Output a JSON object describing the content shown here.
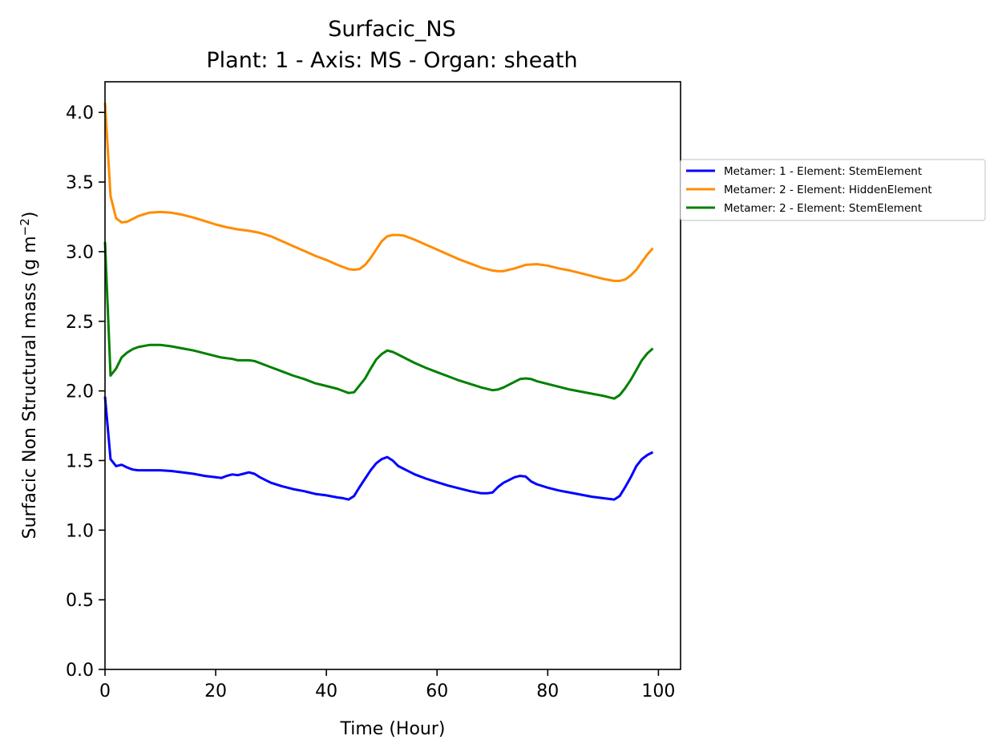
{
  "chart_data": {
    "type": "line",
    "title": "Surfacic_NS",
    "subtitle": "Plant: 1 - Axis: MS - Organ: sheath",
    "xlabel": "Time (Hour)",
    "ylabel_main": "Surfacic Non Structural mass (g m",
    "ylabel_sup": "−2",
    "ylabel_end": ")",
    "xlim": [
      0,
      104
    ],
    "ylim": [
      0,
      4.22
    ],
    "xticks": [
      0,
      20,
      40,
      60,
      80,
      100
    ],
    "yticks": [
      0.0,
      0.5,
      1.0,
      1.5,
      2.0,
      2.5,
      3.0,
      3.5,
      4.0
    ],
    "ytick_labels": [
      "0.0",
      "0.5",
      "1.0",
      "1.5",
      "2.0",
      "2.5",
      "3.0",
      "3.5",
      "4.0"
    ],
    "grid": false,
    "legend_position": "outside-right",
    "series": [
      {
        "name": "Metamer: 1 - Element: StemElement",
        "color": "#0000ff",
        "x": [
          0,
          1,
          2,
          3,
          4,
          5,
          6,
          8,
          10,
          12,
          14,
          16,
          18,
          20,
          21,
          22,
          23,
          24,
          25,
          26,
          27,
          28,
          29,
          30,
          32,
          34,
          36,
          38,
          40,
          42,
          43,
          44,
          45,
          46,
          47,
          48,
          49,
          50,
          51,
          52,
          53,
          54,
          56,
          58,
          60,
          62,
          64,
          66,
          68,
          69,
          70,
          71,
          72,
          73,
          74,
          75,
          76,
          77,
          78,
          80,
          82,
          84,
          86,
          88,
          90,
          91,
          92,
          93,
          94,
          95,
          96,
          97,
          98,
          99
        ],
        "y": [
          1.96,
          1.51,
          1.46,
          1.47,
          1.45,
          1.435,
          1.43,
          1.43,
          1.43,
          1.425,
          1.415,
          1.405,
          1.39,
          1.38,
          1.375,
          1.39,
          1.4,
          1.395,
          1.405,
          1.415,
          1.405,
          1.38,
          1.36,
          1.34,
          1.315,
          1.295,
          1.28,
          1.26,
          1.25,
          1.235,
          1.23,
          1.22,
          1.245,
          1.31,
          1.37,
          1.43,
          1.48,
          1.51,
          1.525,
          1.5,
          1.46,
          1.44,
          1.4,
          1.37,
          1.345,
          1.32,
          1.3,
          1.28,
          1.265,
          1.265,
          1.27,
          1.31,
          1.34,
          1.36,
          1.38,
          1.39,
          1.385,
          1.35,
          1.33,
          1.305,
          1.285,
          1.27,
          1.255,
          1.24,
          1.23,
          1.225,
          1.22,
          1.245,
          1.31,
          1.38,
          1.46,
          1.51,
          1.54,
          1.56
        ]
      },
      {
        "name": "Metamer: 2 - Element: HiddenElement",
        "color": "#ff8c00",
        "x": [
          0,
          1,
          2,
          3,
          4,
          5,
          6,
          8,
          10,
          12,
          14,
          16,
          18,
          20,
          22,
          24,
          26,
          28,
          30,
          32,
          34,
          36,
          38,
          40,
          42,
          44,
          45,
          46,
          47,
          48,
          49,
          50,
          51,
          52,
          53,
          54,
          55,
          56,
          58,
          60,
          62,
          64,
          66,
          68,
          70,
          71,
          72,
          73,
          74,
          76,
          78,
          80,
          82,
          84,
          86,
          88,
          90,
          92,
          93,
          94,
          95,
          96,
          97,
          98,
          99
        ],
        "y": [
          4.07,
          3.4,
          3.24,
          3.21,
          3.215,
          3.235,
          3.255,
          3.28,
          3.285,
          3.28,
          3.265,
          3.245,
          3.22,
          3.195,
          3.175,
          3.16,
          3.15,
          3.135,
          3.11,
          3.075,
          3.04,
          3.005,
          2.97,
          2.94,
          2.905,
          2.875,
          2.87,
          2.875,
          2.905,
          2.955,
          3.015,
          3.075,
          3.11,
          3.12,
          3.12,
          3.115,
          3.1,
          3.085,
          3.05,
          3.015,
          2.98,
          2.945,
          2.915,
          2.885,
          2.865,
          2.86,
          2.86,
          2.87,
          2.88,
          2.905,
          2.91,
          2.9,
          2.88,
          2.865,
          2.845,
          2.825,
          2.805,
          2.79,
          2.79,
          2.8,
          2.83,
          2.87,
          2.925,
          2.98,
          3.025
        ]
      },
      {
        "name": "Metamer: 2 - Element: StemElement",
        "color": "#008000",
        "x": [
          0,
          1,
          2,
          3,
          4,
          5,
          6,
          8,
          10,
          12,
          14,
          16,
          18,
          20,
          21,
          22,
          23,
          24,
          25,
          26,
          27,
          28,
          30,
          32,
          34,
          36,
          38,
          40,
          42,
          43,
          44,
          45,
          46,
          47,
          48,
          49,
          50,
          51,
          52,
          53,
          54,
          56,
          58,
          60,
          62,
          64,
          66,
          68,
          70,
          71,
          72,
          73,
          74,
          75,
          76,
          77,
          78,
          80,
          82,
          84,
          86,
          88,
          90,
          91,
          92,
          93,
          94,
          95,
          96,
          97,
          98,
          99
        ],
        "y": [
          3.07,
          2.11,
          2.16,
          2.24,
          2.275,
          2.3,
          2.315,
          2.33,
          2.33,
          2.32,
          2.305,
          2.29,
          2.27,
          2.25,
          2.24,
          2.235,
          2.23,
          2.22,
          2.22,
          2.22,
          2.215,
          2.2,
          2.17,
          2.14,
          2.11,
          2.085,
          2.055,
          2.035,
          2.015,
          2.0,
          1.985,
          1.99,
          2.04,
          2.09,
          2.16,
          2.225,
          2.265,
          2.29,
          2.28,
          2.26,
          2.24,
          2.2,
          2.165,
          2.135,
          2.105,
          2.075,
          2.05,
          2.025,
          2.005,
          2.01,
          2.025,
          2.045,
          2.065,
          2.085,
          2.09,
          2.085,
          2.07,
          2.05,
          2.03,
          2.01,
          1.995,
          1.98,
          1.965,
          1.955,
          1.945,
          1.97,
          2.02,
          2.08,
          2.15,
          2.22,
          2.27,
          2.305
        ]
      }
    ]
  }
}
